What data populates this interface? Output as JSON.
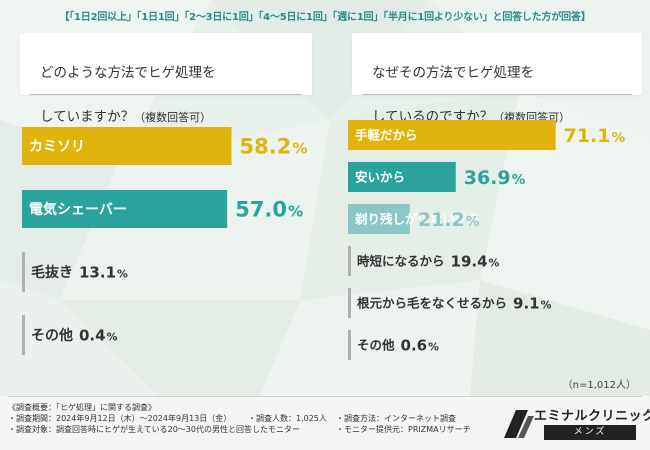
{
  "header": "【「1日2回以上」「1日1回」「2〜3日に1回」「4〜5日に1回」「週に1回」「半月に1回より少ない」と回答した方が回答】",
  "questions": {
    "left": {
      "line1": "どのような方法でヒゲ処理を",
      "line2": "していますか？",
      "suffix": "（複数回答可）"
    },
    "right": {
      "line1": "なぜその方法でヒゲ処理を",
      "line2": "しているのですか？",
      "suffix": "（複数回答可）"
    }
  },
  "colors": {
    "gold": "#e0b30d",
    "teal": "#2aa39d",
    "lightteal": "#8cc7c7",
    "gray": "#b0b0b0",
    "dark": "#333333",
    "white": "#ffffff"
  },
  "chart_data": [
    {
      "type": "bar",
      "orientation": "horizontal",
      "title": "どのような方法でヒゲ処理をしていますか？（複数回答可）",
      "unit": "%",
      "categories": [
        "カミソリ",
        "電気シェーバー",
        "毛抜き",
        "その他"
      ],
      "values": [
        58.2,
        57.0,
        13.1,
        0.4
      ],
      "styles": [
        "gold",
        "teal",
        "gray",
        "gray"
      ]
    },
    {
      "type": "bar",
      "orientation": "horizontal",
      "title": "なぜその方法でヒゲ処理をしているのですか？（複数回答可）",
      "unit": "%",
      "categories": [
        "手軽だから",
        "安いから",
        "剃り残しが少ないから",
        "時短になるから",
        "根元から毛をなくせるから",
        "その他"
      ],
      "values": [
        71.1,
        36.9,
        21.2,
        19.4,
        9.1,
        0.6
      ],
      "styles": [
        "gold",
        "teal",
        "lightteal",
        "gray",
        "gray",
        "gray"
      ]
    }
  ],
  "n_label": "（n=1,012人）",
  "footer": {
    "title": "《調査概要：「ヒゲ処理」に関する調査》",
    "period": "・調査期間：2024年9月12日（木）〜2024年9月13日（金）",
    "count": "・調査人数：1,025人",
    "method": "・調査方法：インターネット調査",
    "target": "・調査対象：調査回答時にヒゲが生えている20〜30代の男性と回答したモニター",
    "provider": "・モニター提供元：PRIZMAリサーチ"
  },
  "logo": {
    "brand": "エミナルクリニック",
    "sub": "メンズ"
  }
}
